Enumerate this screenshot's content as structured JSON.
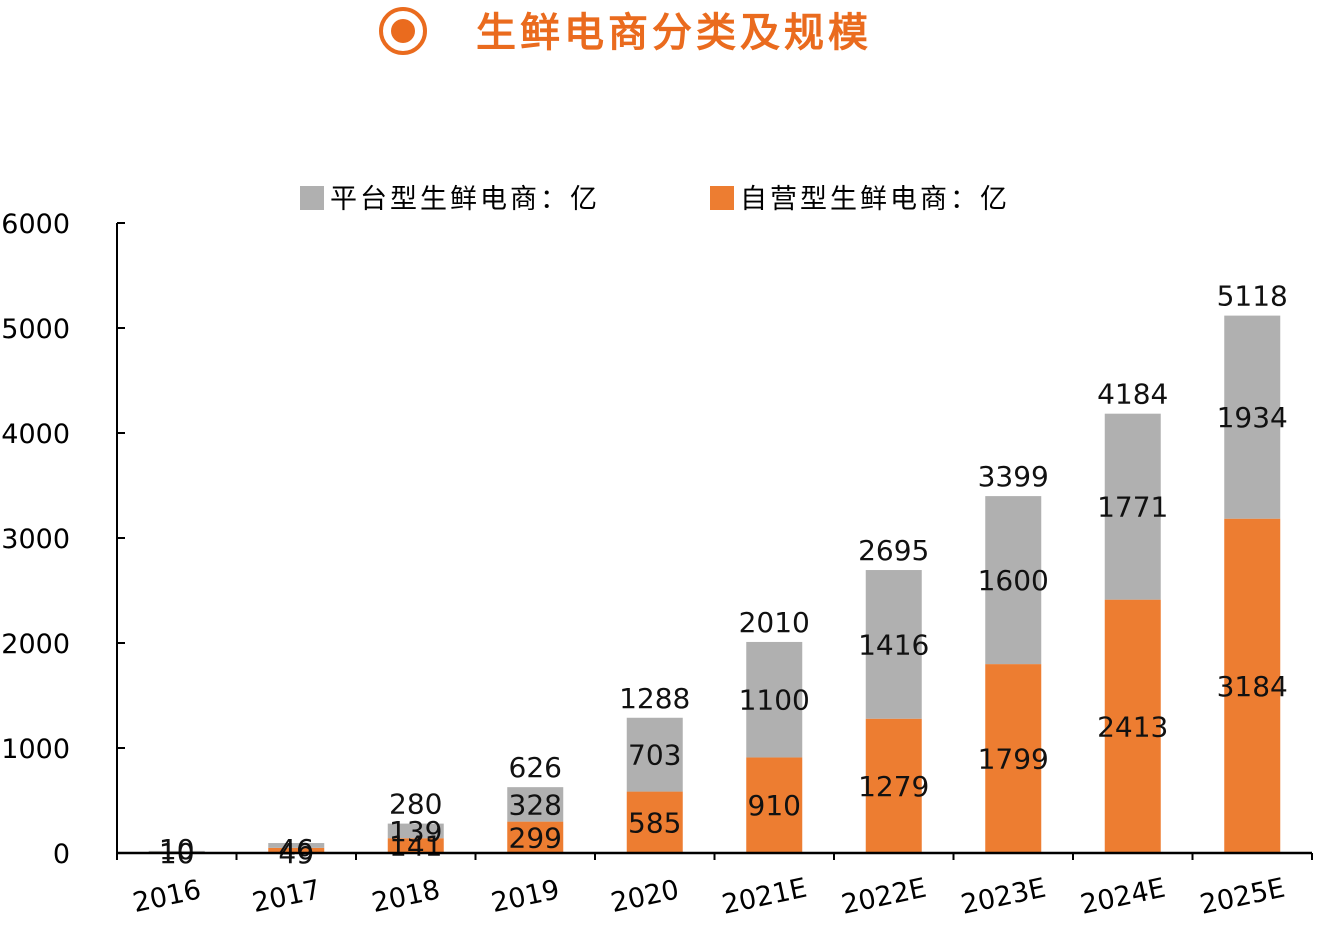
{
  "header": {
    "title": "生鲜电商分类及规模",
    "icon": "target-circle-icon",
    "accent_color": "#ea6b1e"
  },
  "chart_data": {
    "type": "bar",
    "stacked": true,
    "title": "",
    "xlabel": "",
    "ylabel": "",
    "categories": [
      "2016",
      "2017",
      "2018",
      "2019",
      "2020",
      "2021E",
      "2022E",
      "2023E",
      "2024E",
      "2025E"
    ],
    "series": [
      {
        "name": "自营型生鲜电商：亿",
        "color": "#ed7d31",
        "values": [
          10,
          49,
          141,
          299,
          585,
          910,
          1279,
          1799,
          2413,
          3184
        ]
      },
      {
        "name": "平台型生鲜电商：亿",
        "color": "#b0b0b0",
        "values": [
          10,
          46,
          139,
          328,
          703,
          1100,
          1416,
          1600,
          1771,
          1934
        ]
      }
    ],
    "totals": [
      null,
      null,
      280,
      626,
      1288,
      2010,
      2695,
      3399,
      4184,
      5118
    ],
    "ylim": [
      0,
      6000
    ],
    "yticks": [
      0,
      1000,
      2000,
      3000,
      4000,
      5000,
      6000
    ],
    "legend_order": [
      "平台型生鲜电商：亿",
      "自营型生鲜电商：亿"
    ],
    "legend_position": "top",
    "grid": false
  }
}
